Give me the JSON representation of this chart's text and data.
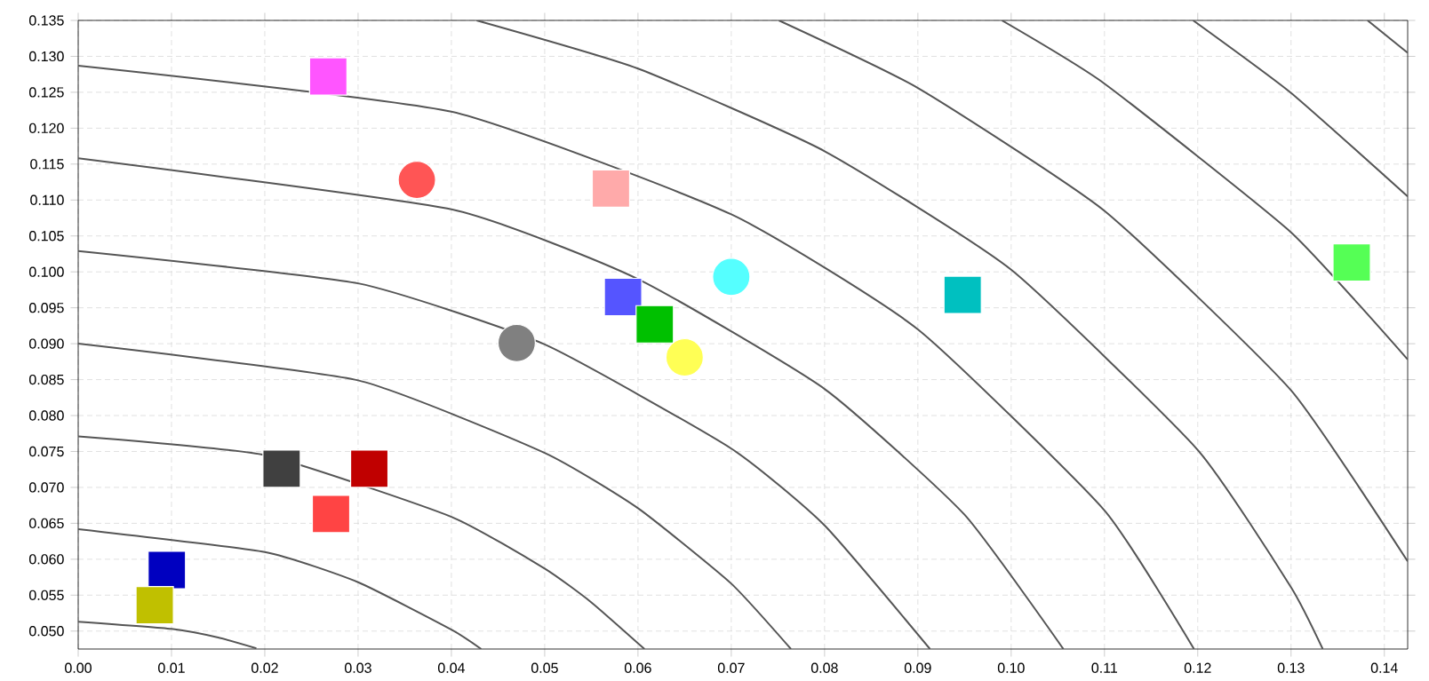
{
  "chart_data": {
    "type": "scatter",
    "grid": true,
    "xlim": [
      0,
      0.1425
    ],
    "ylim": [
      0.0475,
      0.135
    ],
    "xticks": [
      {
        "value": 0,
        "label": "0.00"
      },
      {
        "value": 0.01,
        "label": "0.01"
      },
      {
        "value": 0.02,
        "label": "0.02"
      },
      {
        "value": 0.03,
        "label": "0.03"
      },
      {
        "value": 0.04,
        "label": "0.04"
      },
      {
        "value": 0.05,
        "label": "0.05"
      },
      {
        "value": 0.06,
        "label": "0.06"
      },
      {
        "value": 0.07,
        "label": "0.07"
      },
      {
        "value": 0.08,
        "label": "0.08"
      },
      {
        "value": 0.09,
        "label": "0.09"
      },
      {
        "value": 0.1,
        "label": "0.10"
      },
      {
        "value": 0.11,
        "label": "0.11"
      },
      {
        "value": 0.12,
        "label": "0.12"
      },
      {
        "value": 0.13,
        "label": "0.13"
      },
      {
        "value": 0.14,
        "label": "0.14"
      }
    ],
    "yticks": [
      {
        "value": 0.05,
        "label": "0.050"
      },
      {
        "value": 0.055,
        "label": "0.055"
      },
      {
        "value": 0.06,
        "label": "0.060"
      },
      {
        "value": 0.065,
        "label": "0.065"
      },
      {
        "value": 0.07,
        "label": "0.070"
      },
      {
        "value": 0.075,
        "label": "0.075"
      },
      {
        "value": 0.08,
        "label": "0.080"
      },
      {
        "value": 0.085,
        "label": "0.085"
      },
      {
        "value": 0.09,
        "label": "0.090"
      },
      {
        "value": 0.095,
        "label": "0.095"
      },
      {
        "value": 0.1,
        "label": "0.100"
      },
      {
        "value": 0.105,
        "label": "0.105"
      },
      {
        "value": 0.11,
        "label": "0.110"
      },
      {
        "value": 0.115,
        "label": "0.115"
      },
      {
        "value": 0.12,
        "label": "0.120"
      },
      {
        "value": 0.125,
        "label": "0.125"
      },
      {
        "value": 0.13,
        "label": "0.130"
      },
      {
        "value": 0.135,
        "label": "0.135"
      }
    ],
    "series": [
      {
        "type": "line",
        "marker": "none",
        "line_style": "solid",
        "color": "#555555",
        "x": [
          0,
          0.01,
          0.015,
          0.0191
        ],
        "values": [
          0.0513,
          0.0503,
          0.0491,
          0.0476
        ]
      },
      {
        "type": "line",
        "marker": "none",
        "line_style": "solid",
        "color": "#555555",
        "x": [
          0,
          0.02,
          0.03,
          0.04,
          0.0432
        ],
        "values": [
          0.0642,
          0.061,
          0.0568,
          0.0502,
          0.0475
        ]
      },
      {
        "type": "line",
        "marker": "none",
        "line_style": "solid",
        "color": "#555555",
        "x": [
          0,
          0.02,
          0.04,
          0.05,
          0.055,
          0.0607
        ],
        "values": [
          0.0771,
          0.0745,
          0.0659,
          0.0587,
          0.054,
          0.0475
        ]
      },
      {
        "type": "line",
        "marker": "none",
        "line_style": "solid",
        "color": "#555555",
        "x": [
          0,
          0.03,
          0.05,
          0.06,
          0.07,
          0.0764
        ],
        "values": [
          0.09,
          0.0849,
          0.0748,
          0.0671,
          0.0566,
          0.0475
        ]
      },
      {
        "type": "line",
        "marker": "none",
        "line_style": "solid",
        "color": "#555555",
        "x": [
          0,
          0.03,
          0.05,
          0.07,
          0.08,
          0.0913
        ],
        "values": [
          0.1029,
          0.0984,
          0.0899,
          0.0754,
          0.0647,
          0.0475
        ]
      },
      {
        "type": "line",
        "marker": "none",
        "line_style": "solid",
        "color": "#555555",
        "x": [
          0,
          0.04,
          0.06,
          0.08,
          0.095,
          0.1056
        ],
        "values": [
          0.1158,
          0.1087,
          0.099,
          0.0837,
          0.0662,
          0.0475
        ]
      },
      {
        "type": "line",
        "marker": "none",
        "line_style": "solid",
        "color": "#555555",
        "x": [
          0,
          0.04,
          0.07,
          0.09,
          0.11,
          0.1196
        ],
        "values": [
          0.1287,
          0.1223,
          0.108,
          0.092,
          0.0668,
          0.0475
        ]
      },
      {
        "type": "line",
        "marker": "none",
        "line_style": "solid",
        "color": "#555555",
        "x": [
          0.0427,
          0.06,
          0.08,
          0.1,
          0.12,
          0.13,
          0.1334
        ],
        "values": [
          0.135,
          0.1283,
          0.1168,
          0.1003,
          0.0752,
          0.0561,
          0.0475
        ]
      },
      {
        "type": "line",
        "marker": "none",
        "line_style": "solid",
        "color": "#555555",
        "x": [
          0.0751,
          0.09,
          0.11,
          0.13,
          0.1425
        ],
        "values": [
          0.135,
          0.1256,
          0.1085,
          0.0835,
          0.0597
        ]
      },
      {
        "type": "line",
        "marker": "none",
        "line_style": "solid",
        "color": "#555555",
        "x": [
          0.099,
          0.11,
          0.13,
          0.1425
        ],
        "values": [
          0.135,
          0.1262,
          0.1055,
          0.0878
        ]
      },
      {
        "type": "line",
        "marker": "none",
        "line_style": "solid",
        "color": "#555555",
        "x": [
          0.1195,
          0.13,
          0.1425
        ],
        "values": [
          0.135,
          0.1249,
          0.1105
        ]
      },
      {
        "type": "line",
        "marker": "none",
        "line_style": "solid",
        "color": "#555555",
        "x": [
          0.1382,
          0.1425
        ],
        "values": [
          0.135,
          0.1305
        ]
      },
      {
        "marker": "square",
        "color": "#ff55ff",
        "x": [
          0.0268
        ],
        "values": [
          0.1272
        ]
      },
      {
        "marker": "circle",
        "color": "#ff5555",
        "x": [
          0.0363
        ],
        "values": [
          0.1128
        ]
      },
      {
        "marker": "square",
        "color": "#ffaaaa",
        "x": [
          0.0571
        ],
        "values": [
          0.1116
        ]
      },
      {
        "marker": "circle",
        "color": "#55ffff",
        "x": [
          0.07
        ],
        "values": [
          0.0993
        ]
      },
      {
        "marker": "square",
        "color": "#00c0c0",
        "x": [
          0.0948
        ],
        "values": [
          0.0968
        ]
      },
      {
        "marker": "square",
        "color": "#55ff55",
        "x": [
          0.1365
        ],
        "values": [
          0.1013
        ]
      },
      {
        "marker": "square",
        "color": "#5555ff",
        "x": [
          0.0584
        ],
        "values": [
          0.0965
        ]
      },
      {
        "marker": "square",
        "color": "#00c000",
        "x": [
          0.0618
        ],
        "values": [
          0.0927
        ]
      },
      {
        "marker": "circle",
        "color": "#ffff55",
        "x": [
          0.065
        ],
        "values": [
          0.0881
        ]
      },
      {
        "marker": "circle",
        "color": "#808080",
        "x": [
          0.047
        ],
        "values": [
          0.0901
        ]
      },
      {
        "marker": "square",
        "color": "#404040",
        "x": [
          0.0218
        ],
        "values": [
          0.0726
        ]
      },
      {
        "marker": "square",
        "color": "#c00000",
        "x": [
          0.0312
        ],
        "values": [
          0.0726
        ]
      },
      {
        "marker": "square",
        "color": "#ff4444",
        "x": [
          0.0271
        ],
        "values": [
          0.0663
        ]
      },
      {
        "marker": "square",
        "color": "#0000c0",
        "x": [
          0.0095
        ],
        "values": [
          0.0585
        ]
      },
      {
        "marker": "square",
        "color": "#c0c000",
        "x": [
          0.0082
        ],
        "values": [
          0.0536
        ]
      }
    ]
  }
}
